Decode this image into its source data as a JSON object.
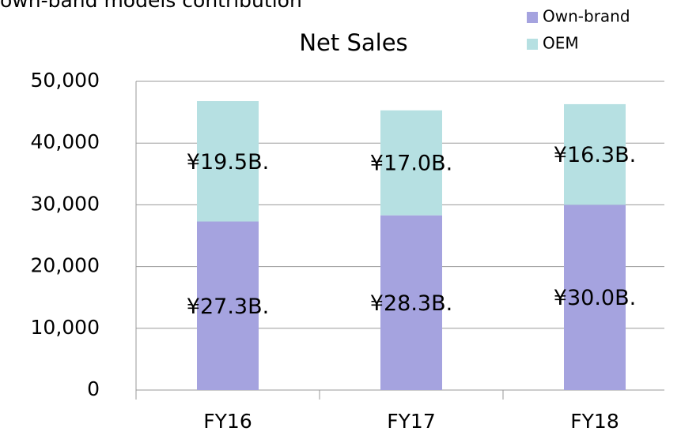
{
  "chart_data": {
    "type": "stacked-bar",
    "title": "Net Sales",
    "annotation": "own-band models contribution",
    "categories": [
      "FY16",
      "FY17",
      "FY18"
    ],
    "series": [
      {
        "name": "Own-brand",
        "color": "#a5a3df",
        "values": [
          27300,
          28300,
          30000
        ],
        "value_labels": [
          "¥27.3B.",
          "¥28.3B.",
          "¥30.0B."
        ]
      },
      {
        "name": "OEM",
        "color": "#b6e0e2",
        "values": [
          19500,
          17000,
          16300
        ],
        "value_labels": [
          "¥19.5B.",
          "¥17.0B.",
          "¥16.3B."
        ]
      }
    ],
    "ylim": [
      0,
      50000
    ],
    "yticks": [
      0,
      {
        "value": 10000,
        "label": "10,000"
      },
      {
        "value": 20000,
        "label": "20,000"
      },
      {
        "value": 30000,
        "label": "30,000"
      },
      {
        "value": 40000,
        "label": "40,000"
      },
      {
        "value": 50000,
        "label": "50,000"
      }
    ],
    "grid": true,
    "legend": "top-right"
  }
}
